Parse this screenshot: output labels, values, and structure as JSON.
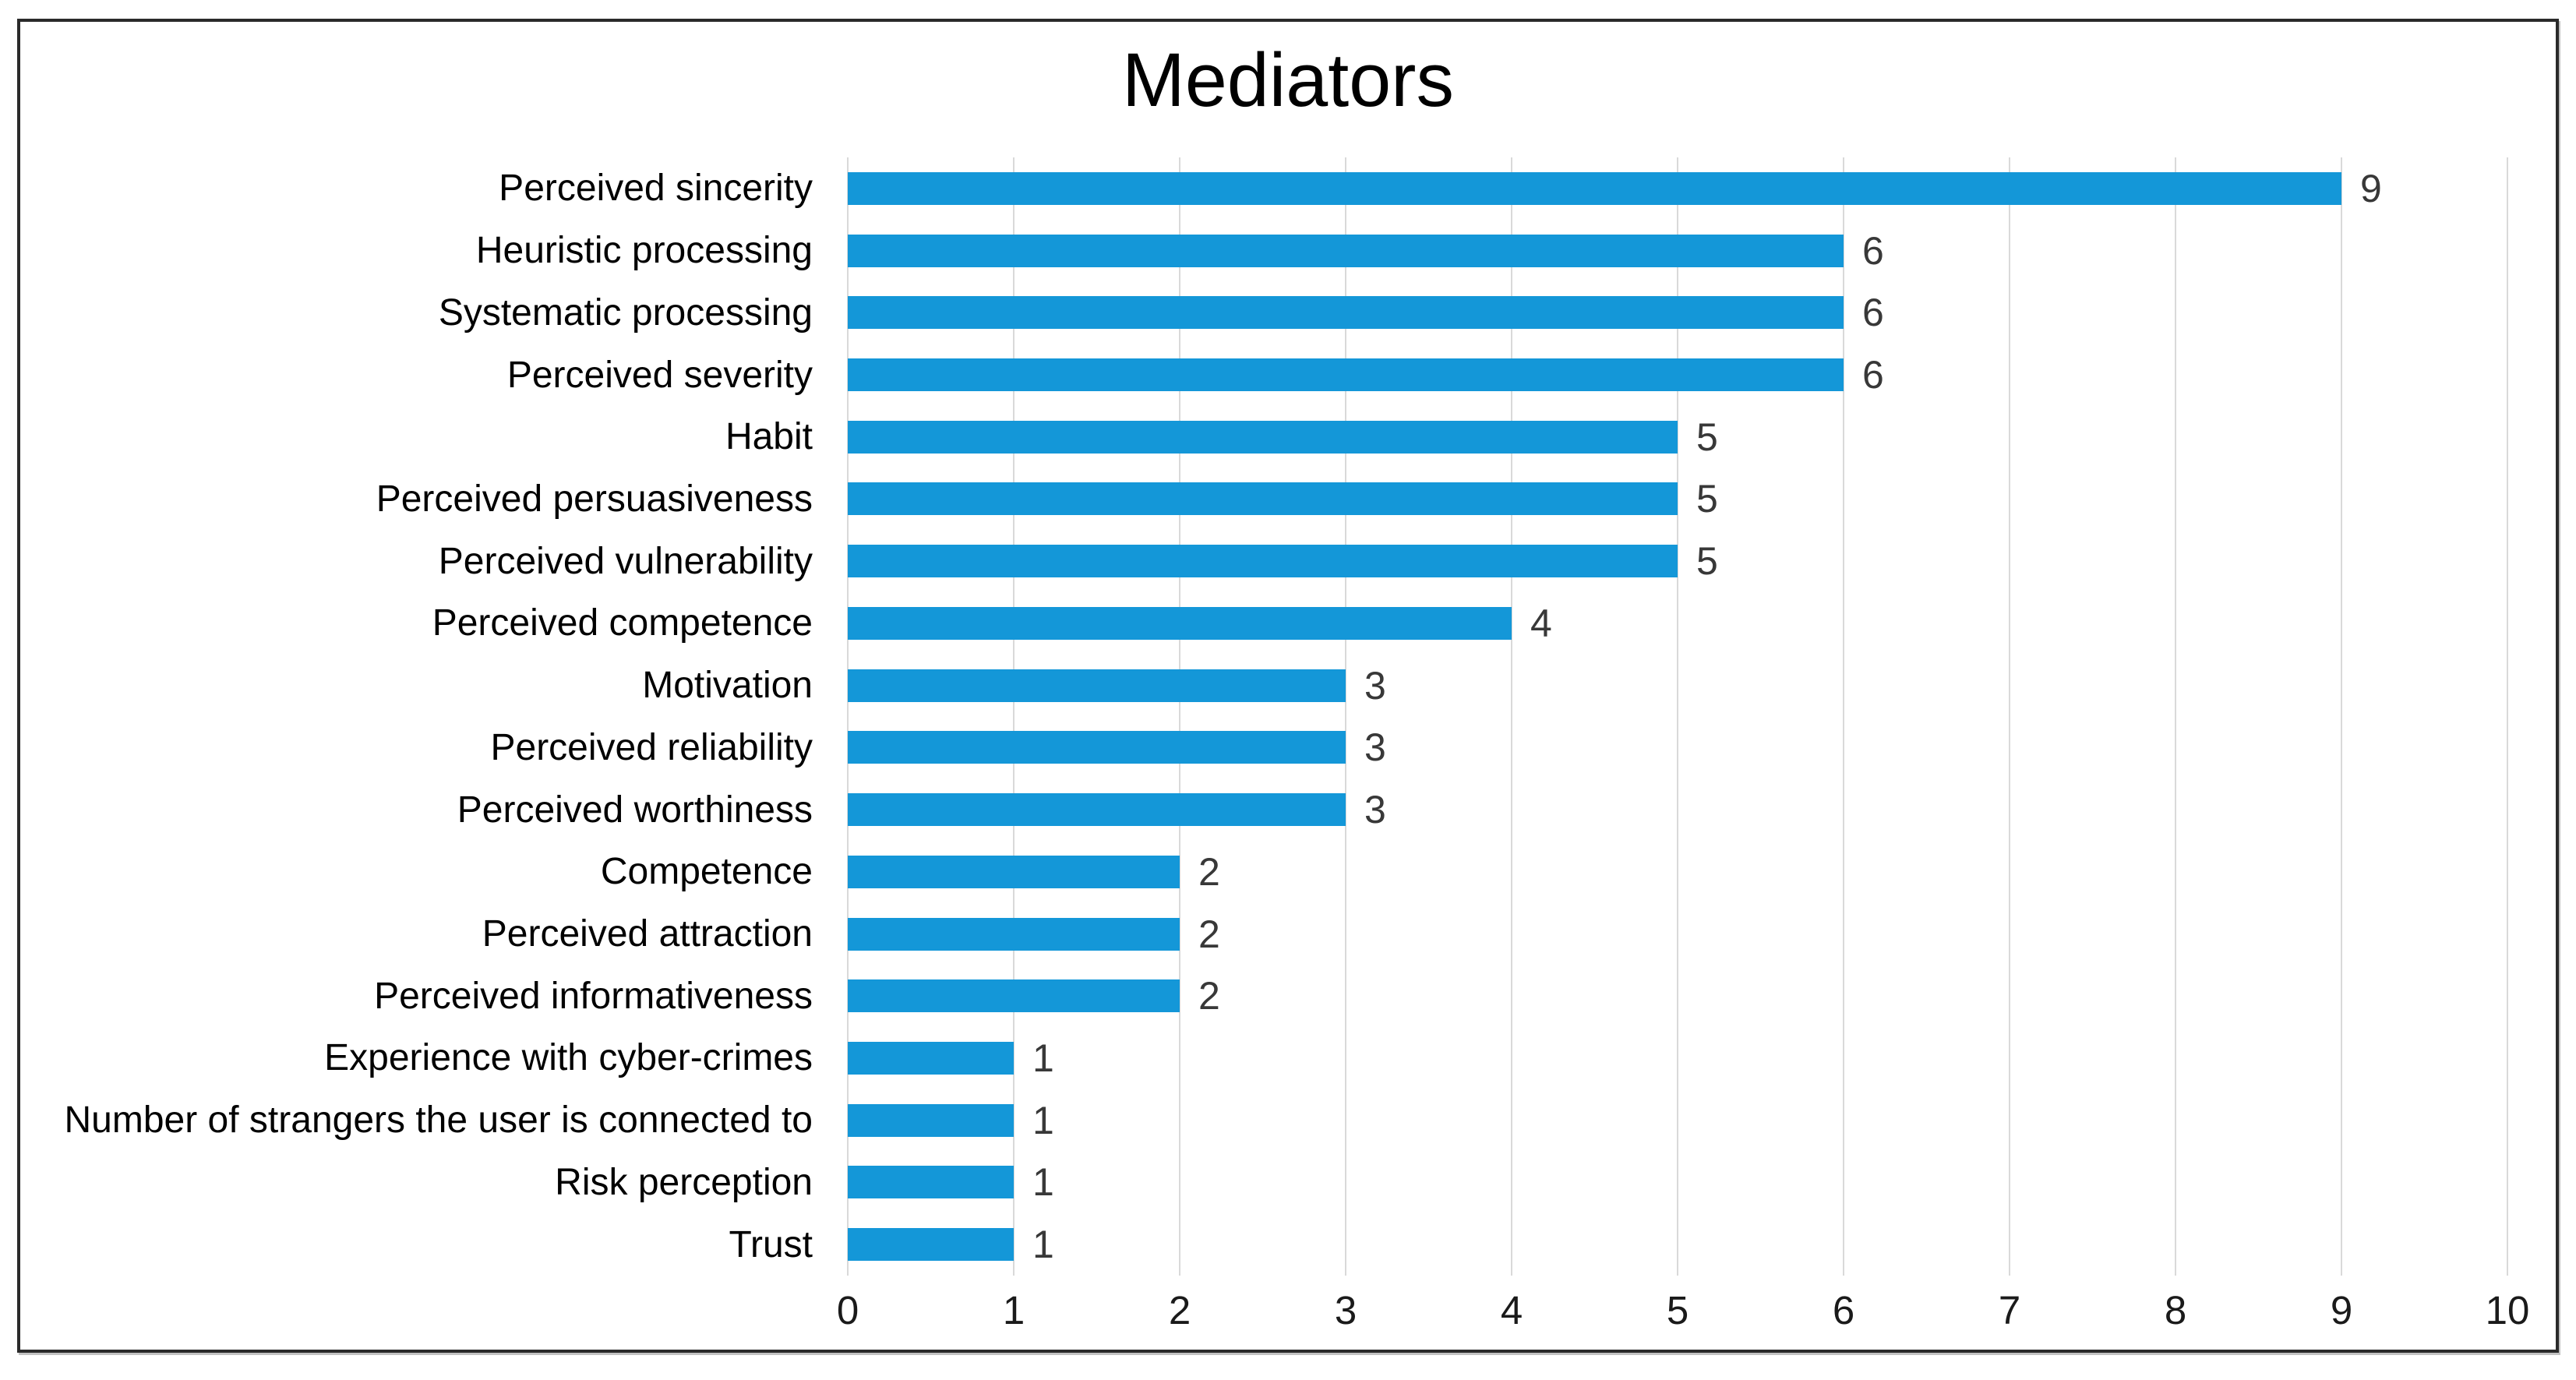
{
  "chart_data": {
    "type": "bar",
    "orientation": "horizontal",
    "title": "Mediators",
    "categories": [
      "Perceived sincerity",
      "Heuristic processing",
      "Systematic processing",
      "Perceived severity",
      "Habit",
      "Perceived persuasiveness",
      "Perceived vulnerability",
      "Perceived competence",
      "Motivation",
      "Perceived reliability",
      "Perceived worthiness",
      "Competence",
      "Perceived attraction",
      "Perceived informativeness",
      "Experience with cyber-crimes",
      "Number of strangers the user is connected to",
      "Risk perception",
      "Trust"
    ],
    "values": [
      9,
      6,
      6,
      6,
      5,
      5,
      5,
      4,
      3,
      3,
      3,
      2,
      2,
      2,
      1,
      1,
      1,
      1
    ],
    "x_ticks": [
      "0",
      "1",
      "2",
      "3",
      "4",
      "5",
      "6",
      "7",
      "8",
      "9",
      "10"
    ],
    "xlim": [
      0,
      10
    ],
    "xlabel": "",
    "ylabel": "",
    "grid": "vertical",
    "legend": "none",
    "bar_color": "#1497D8",
    "gridline_color": "#D9D9D9",
    "value_label_color": "#383838",
    "text_color": "#000000",
    "frame_color": "#2a2a2a"
  }
}
